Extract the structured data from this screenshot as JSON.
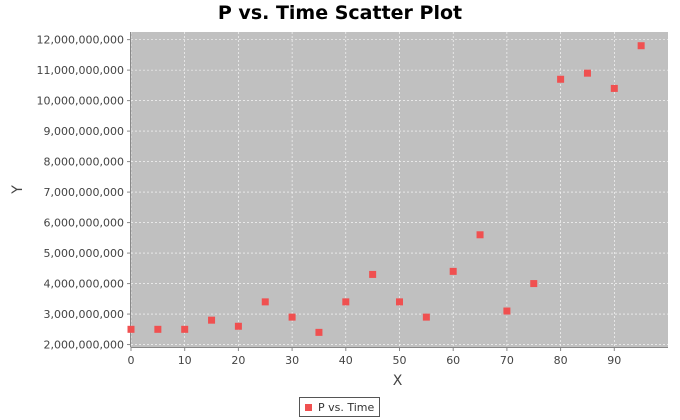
{
  "chart_data": {
    "type": "scatter",
    "title": "P vs. Time Scatter Plot",
    "xlabel": "X",
    "ylabel": "Y",
    "xlim": [
      0,
      100
    ],
    "ylim": [
      1920000000,
      12250000000
    ],
    "xticks": [
      0,
      10,
      20,
      30,
      40,
      50,
      60,
      70,
      80,
      90
    ],
    "xtick_labels": [
      "0",
      "10",
      "20",
      "30",
      "40",
      "50",
      "60",
      "70",
      "80",
      "90"
    ],
    "yticks": [
      2000000000,
      3000000000,
      4000000000,
      5000000000,
      6000000000,
      7000000000,
      8000000000,
      9000000000,
      10000000000,
      11000000000,
      12000000000
    ],
    "ytick_labels": [
      "2,000,000,000",
      "3,000,000,000",
      "4,000,000,000",
      "5,000,000,000",
      "6,000,000,000",
      "7,000,000,000",
      "8,000,000,000",
      "9,000,000,000",
      "10,000,000,000",
      "11,000,000,000",
      "12,000,000,000"
    ],
    "grid": true,
    "background_color": "#c0c0c0",
    "legend_position": "bottom-center",
    "series": [
      {
        "name": "P vs. Time",
        "color": "#f05050",
        "marker": "square",
        "x": [
          0,
          5,
          10,
          15,
          20,
          25,
          30,
          35,
          40,
          45,
          50,
          55,
          60,
          65,
          70,
          75,
          80,
          85,
          90,
          95
        ],
        "y": [
          2500000000,
          2500000000,
          2500000000,
          2800000000,
          2600000000,
          3400000000,
          2900000000,
          2400000000,
          3400000000,
          4300000000,
          3400000000,
          2900000000,
          4400000000,
          5600000000,
          3100000000,
          4000000000,
          10700000000,
          10900000000,
          10400000000,
          11800000000
        ]
      }
    ]
  }
}
